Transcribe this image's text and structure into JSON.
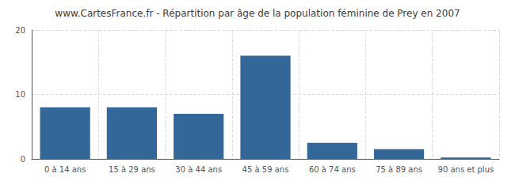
{
  "chart_data": {
    "type": "bar",
    "title": "www.CartesFrance.fr - Répartition par âge de la population féminine de Prey en 2007",
    "categories": [
      "0 à 14 ans",
      "15 à 29 ans",
      "30 à 44 ans",
      "45 à 59 ans",
      "60 à 74 ans",
      "75 à 89 ans",
      "90 ans et plus"
    ],
    "values": [
      8,
      8,
      7,
      16,
      2.5,
      1.5,
      0.2
    ],
    "color": "#336699",
    "ylim": [
      0,
      20
    ],
    "yticks": [
      0,
      10,
      20
    ],
    "grid": true
  }
}
